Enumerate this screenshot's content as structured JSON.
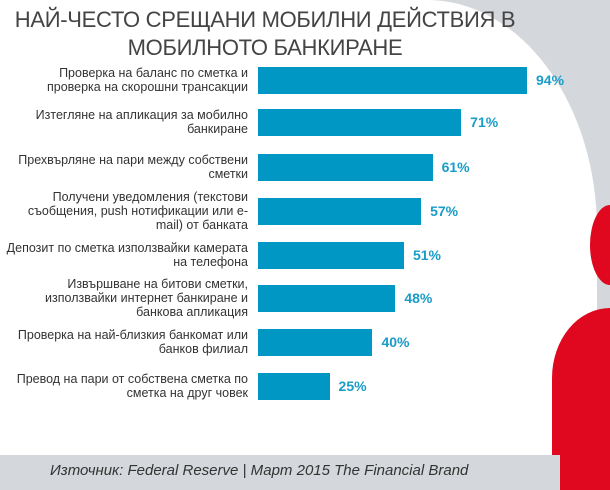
{
  "chart_data": {
    "type": "bar",
    "orientation": "horizontal",
    "title": "НАЙ-ЧЕСТО СРЕЩАНИ МОБИЛНИ ДЕЙСТВИЯ В МОБИЛНОТО БАНКИРАНЕ",
    "categories": [
      "Проверка на баланс по сметка и проверка на скорошни трансакции",
      "Изтегляне на апликация за мобилно банкиране",
      "Прехвърляне на пари между собствени сметки",
      "Получени уведомления (текстови съобщения, push нотификации или e-mail) от банката",
      "Депозит по сметка използвайки камерата на телефона",
      "Извършване на битови сметки, използвайки интернет банкиране и банкова апликация",
      "Проверка на най-близкия банкомат или банков филиал",
      "Превод на пари от собствена сметка по сметка на друг човек"
    ],
    "values": [
      94,
      71,
      61,
      57,
      51,
      48,
      40,
      25
    ],
    "value_labels": [
      "94%",
      "71%",
      "61%",
      "57%",
      "51%",
      "48%",
      "40%",
      "25%"
    ],
    "xlim": [
      0,
      100
    ],
    "bar_color": "#0097c4",
    "label_color": "#1a9cc8"
  },
  "source": "Източник: Federal Reserve | Март 2015 The Financial Brand"
}
